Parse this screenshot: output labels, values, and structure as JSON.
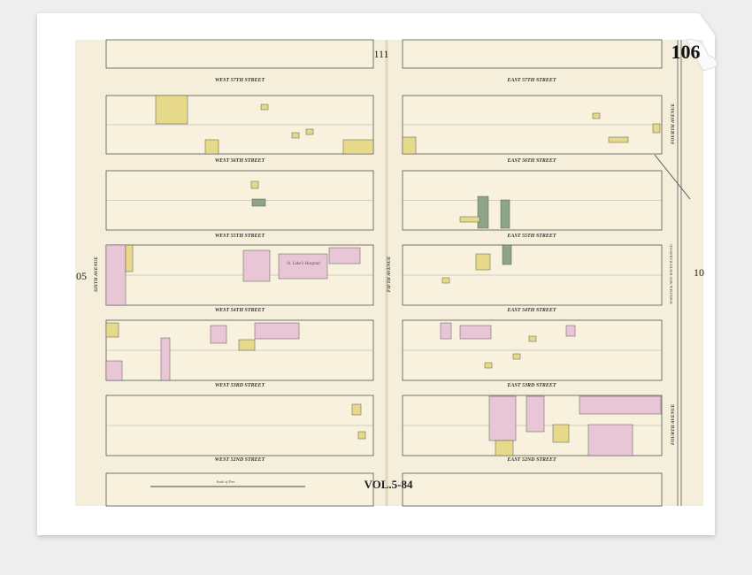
{
  "sheet": {
    "left_page_number": "111",
    "right_page_number": "106",
    "volume": "VOL.5-84",
    "adjacent_left": "05",
    "adjacent_right": "10"
  },
  "streets": {
    "west": [
      "WEST 57TH STREET",
      "WEST 56TH STREET",
      "WEST 55TH STREET",
      "WEST 54TH STREET",
      "WEST 53RD STREET",
      "WEST 52ND STREET"
    ],
    "east": [
      "EAST 57TH STREET",
      "EAST 56TH STREET",
      "EAST 55TH STREET",
      "EAST 54TH STREET",
      "EAST 53RD STREET",
      "EAST 52ND STREET"
    ]
  },
  "avenues": {
    "sixth": "SIXTH AVENUE",
    "fifth": "FIFTH AVENUE",
    "fourth_upper": "FOURTH AVENUE",
    "fourth_lower": "FOURTH AVENUE"
  },
  "labels": {
    "hospital": "St. Luke's Hospital",
    "railroad": "HARLEM & NEW HAVEN RAILROAD",
    "scale": "Scale of Feet"
  }
}
